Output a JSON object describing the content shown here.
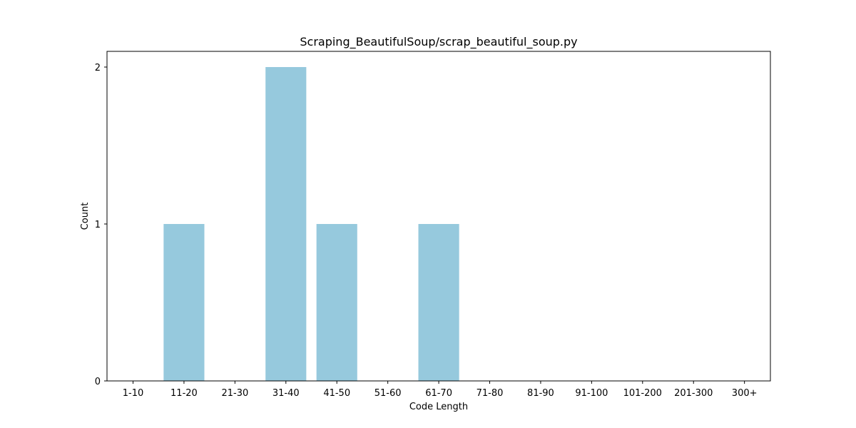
{
  "chart_data": {
    "type": "bar",
    "title": "Scraping_BeautifulSoup/scrap_beautiful_soup.py",
    "xlabel": "Code Length",
    "ylabel": "Count",
    "categories": [
      "1-10",
      "11-20",
      "21-30",
      "31-40",
      "41-50",
      "51-60",
      "61-70",
      "71-80",
      "81-90",
      "91-100",
      "101-200",
      "201-300",
      "300+"
    ],
    "values": [
      0,
      1,
      0,
      2,
      1,
      0,
      1,
      0,
      0,
      0,
      0,
      0,
      0
    ],
    "ylim": [
      0,
      2.1
    ],
    "yticks": [
      0,
      1,
      2
    ],
    "bar_color": "#96c9dd",
    "grid": false,
    "legend": "none"
  }
}
